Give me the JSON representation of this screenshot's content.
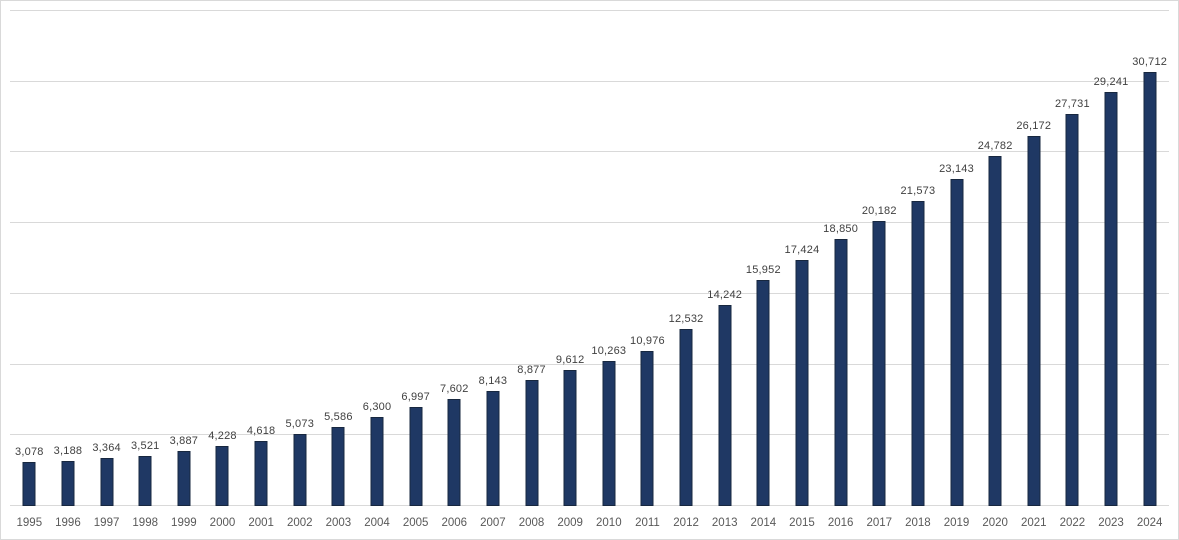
{
  "chart_data": {
    "type": "bar",
    "title": "",
    "xlabel": "",
    "ylabel": "",
    "categories": [
      "1995",
      "1996",
      "1997",
      "1998",
      "1999",
      "2000",
      "2001",
      "2002",
      "2003",
      "2004",
      "2005",
      "2006",
      "2007",
      "2008",
      "2009",
      "2010",
      "2011",
      "2012",
      "2013",
      "2014",
      "2015",
      "2016",
      "2017",
      "2018",
      "2019",
      "2020",
      "2021",
      "2022",
      "2023",
      "2024"
    ],
    "values": [
      3078,
      3188,
      3364,
      3521,
      3887,
      4228,
      4618,
      5073,
      5586,
      6300,
      6997,
      7602,
      8143,
      8877,
      9612,
      10263,
      10976,
      12532,
      14242,
      15952,
      17424,
      18850,
      20182,
      21573,
      23143,
      24782,
      26172,
      27731,
      29241,
      30712
    ],
    "value_labels": [
      "3,078",
      "3,188",
      "3,364",
      "3,521",
      "3,887",
      "4,228",
      "4,618",
      "5,073",
      "5,586",
      "6,300",
      "6,997",
      "7,602",
      "8,143",
      "8,877",
      "9,612",
      "10,263",
      "10,976",
      "12,532",
      "14,242",
      "15,952",
      "17,424",
      "18,850",
      "20,182",
      "21,573",
      "23,143",
      "24,782",
      "26,172",
      "27,731",
      "29,241",
      "30,712"
    ],
    "ylim": [
      0,
      35000
    ],
    "gridline_step": 5000,
    "grid": "horizontal",
    "legend_position": "none",
    "y_axis_tick_labels_visible": false,
    "data_labels_visible": true,
    "colors": {
      "bar_fill": "#1f3864",
      "bar_border": "#17273f",
      "gridline": "#d9d9d9",
      "chart_border": "#d9d9d9",
      "background": "#ffffff",
      "value_label_text": "#404040",
      "axis_tick_text": "#595959"
    }
  }
}
